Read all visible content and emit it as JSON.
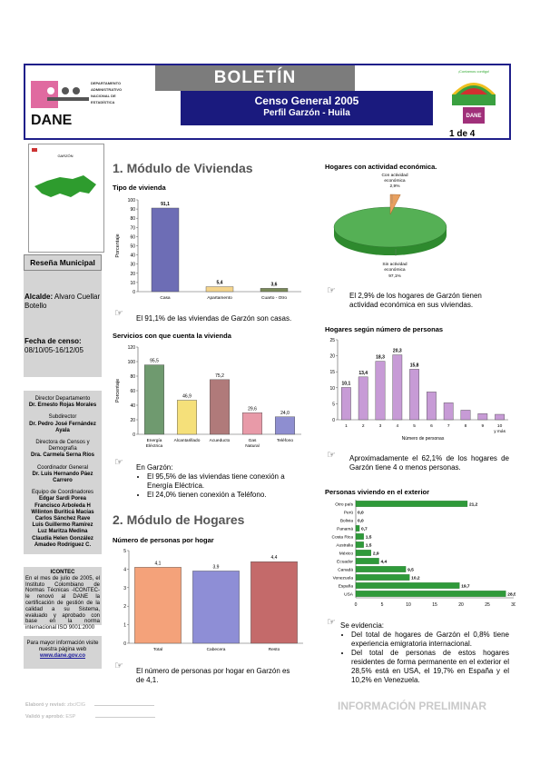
{
  "header": {
    "title": "BOLETÍN",
    "subtitle1": "Censo General 2005",
    "subtitle2": "Perfil Garzón - Huila",
    "page": "1 de 4",
    "dane_text": [
      "DEPARTAMENTO",
      "ADMINISTRATIVO",
      "NACIONAL DE",
      "ESTADÍSTICA"
    ],
    "dane_word": "DANE",
    "censo_logo_text": "¡Contamos contigo!",
    "censo_logo_word": "DANE"
  },
  "map_label": "GARZÓN",
  "sidebar": {
    "resena": "Reseña Municipal",
    "alcalde_label": "Alcalde:",
    "alcalde_value": "Alvaro Cuellar Botello",
    "fecha_label": "Fecha de censo:",
    "fecha_value": "08/10/05-16/12/05",
    "credits": [
      {
        "role": "Director Departamento",
        "name": "Dr. Ernesto Rojas Morales"
      },
      {
        "role": "Subdirector",
        "name": "Dr. Pedro José Fernández Ayala"
      },
      {
        "role": "Directora de Censos y Demografía",
        "name": "Dra. Carmela Serna Ríos"
      },
      {
        "role": "Coordinador General",
        "name": "Dr. Luis Hernando Páez Carrero"
      },
      {
        "role": "Equipo de Coordinadores",
        "name": "Edgar Sardi Porea"
      }
    ],
    "team": [
      "Francisco Arboleda H",
      "Wilinton Buriticá Macías",
      "Carlos Sánchez Rave",
      "Luis Guillermo Ramírez",
      "Luz Maritza Medina",
      "Claudia Helen González",
      "Amadeo Rodríguez C."
    ],
    "icontec_title": "ICONTEC",
    "icontec_text": "En el mes de julio de 2005, el Instituto Colombiano de Normas Técnicas -ICONTEC- le renovó al DANE la certificación de gestión de la calidad a su Sistema, evaluado y aprobado con base en la norma internacional ISO 9001:2000",
    "web_text": "Para mayor información visite nuestra página web",
    "web_url": "www.dane.gov.co"
  },
  "section1": {
    "title": "1. Módulo de Viviendas",
    "chart1_title": "Tipo de vivienda",
    "chart1_note": "El 91,1% de las viviendas de Garzón son casas.",
    "chart2_title": "Servicios con que cuenta la vivienda",
    "chart2_intro": "En Garzón:",
    "chart2_bullets": [
      "El 95,5% de las viviendas tiene conexión a Energía Eléctrica.",
      "El 24,0% tienen conexión a Teléfono."
    ]
  },
  "section2": {
    "title": "2. Módulo de Hogares",
    "chart3_title": "Número de personas por hogar",
    "chart3_note": "El número de personas por hogar en Garzón es de 4,1."
  },
  "right": {
    "chart4_title": "Hogares con actividad económica.",
    "chart4_note": "El 2,9% de los hogares de Garzón tienen actividad económica en sus viviendas.",
    "chart5_title": "Hogares según número de personas",
    "chart5_note": "Aproximadamente el 62,1% de los hogares de Garzón tiene 4 o menos personas.",
    "chart6_title": "Personas viviendo en el exterior",
    "chart6_intro": "Se evidencia:",
    "chart6_bullets": [
      "Del total de hogares de Garzón el 0,8% tiene experiencia emigratoria internacional.",
      "Del total de personas de estos hogares residentes de forma permanente en el exterior el 28,5% está en USA, el 19,7% en España y el 10,2% en Venezuela."
    ]
  },
  "footer": {
    "elaboro": "Elaboró y revisó: ",
    "elaboro_val": "zbc/CIG",
    "valido": "Validó y aprobó: ",
    "valido_val": "ESP",
    "prelim": "INFORMACIÓN PRELIMINAR"
  },
  "chart_data": [
    {
      "type": "bar",
      "title": "Tipo de vivienda",
      "ylabel": "Porcentaje",
      "ylim": [
        0,
        100
      ],
      "yticks": [
        0,
        10,
        20,
        30,
        40,
        50,
        60,
        70,
        80,
        90,
        100
      ],
      "categories": [
        "Casa",
        "Apartamento",
        "Cuarto - Otro"
      ],
      "values": [
        91.1,
        5.4,
        3.6
      ],
      "labels": [
        "91,1",
        "5,4",
        "3,6"
      ],
      "colors": [
        "#6d6db5",
        "#f4d48c",
        "#7a8a5a"
      ]
    },
    {
      "type": "bar",
      "title": "Servicios con que cuenta la vivienda",
      "ylabel": "Porcentaje",
      "ylim": [
        0,
        120
      ],
      "yticks": [
        0,
        20,
        40,
        60,
        80,
        100,
        120
      ],
      "categories": [
        "Energía Eléctrica",
        "Alcantarillado",
        "Acueducto",
        "Gas Natural",
        "Teléfono"
      ],
      "values": [
        95.5,
        46.9,
        75.2,
        29.6,
        24.0
      ],
      "labels": [
        "95,5",
        "46,9",
        "75,2",
        "29,6",
        "24,0"
      ],
      "colors": [
        "#6f9a6f",
        "#f5e07a",
        "#b07a7a",
        "#e89aa8",
        "#8e8ed0"
      ]
    },
    {
      "type": "bar",
      "title": "Número de personas por hogar",
      "ylim": [
        0,
        5
      ],
      "yticks": [
        0,
        1,
        2,
        3,
        4,
        5
      ],
      "categories": [
        "Total",
        "Cabecera",
        "Resto"
      ],
      "values": [
        4.1,
        3.9,
        4.4
      ],
      "labels": [
        "4,1",
        "3,9",
        "4,4"
      ],
      "colors": [
        "#f4a27a",
        "#8e8ed6",
        "#c46a6a"
      ]
    },
    {
      "type": "pie",
      "title": "Hogares con actividad económica.",
      "categories": [
        "Con actividad económica",
        "Sin actividad económica"
      ],
      "values": [
        2.9,
        97.1
      ],
      "labels": [
        "2,9%",
        "97,1%"
      ],
      "colors": [
        "#e8a060",
        "#55b055"
      ]
    },
    {
      "type": "bar",
      "title": "Hogares según número de personas",
      "xlabel": "Número de personas",
      "ylim": [
        0,
        25
      ],
      "yticks": [
        0,
        5,
        10,
        15,
        20,
        25
      ],
      "categories": [
        "1",
        "2",
        "3",
        "4",
        "5",
        "6",
        "7",
        "8",
        "9",
        "10 y más"
      ],
      "values": [
        10.1,
        13.4,
        18.3,
        20.3,
        15.8,
        8.7,
        5.3,
        3.0,
        1.9,
        1.7
      ],
      "labels": [
        "10,1",
        "13,4",
        "18,3",
        "20,3",
        "15,8",
        "",
        "",
        "",
        "",
        ""
      ]
    },
    {
      "type": "bar",
      "title": "Personas viviendo en el exterior",
      "orientation": "horizontal",
      "xlim": [
        0,
        30
      ],
      "xticks": [
        0,
        5,
        10,
        15,
        20,
        25,
        30
      ],
      "categories": [
        "Otro país",
        "Perú",
        "Bolivia",
        "Panamá",
        "Costa Rica",
        "Australia",
        "México",
        "Ecuador",
        "Canadá",
        "Venezuela",
        "España",
        "USA"
      ],
      "values": [
        21.2,
        0.0,
        0.0,
        0.7,
        1.5,
        1.5,
        2.9,
        4.4,
        9.5,
        10.2,
        19.7,
        28.5
      ],
      "labels": [
        "21,2",
        "0,0",
        "0,0",
        "0,7",
        "1,5",
        "1,5",
        "2,9",
        "4,4",
        "9,5",
        "10,2",
        "19,7",
        "28,5"
      ]
    }
  ]
}
